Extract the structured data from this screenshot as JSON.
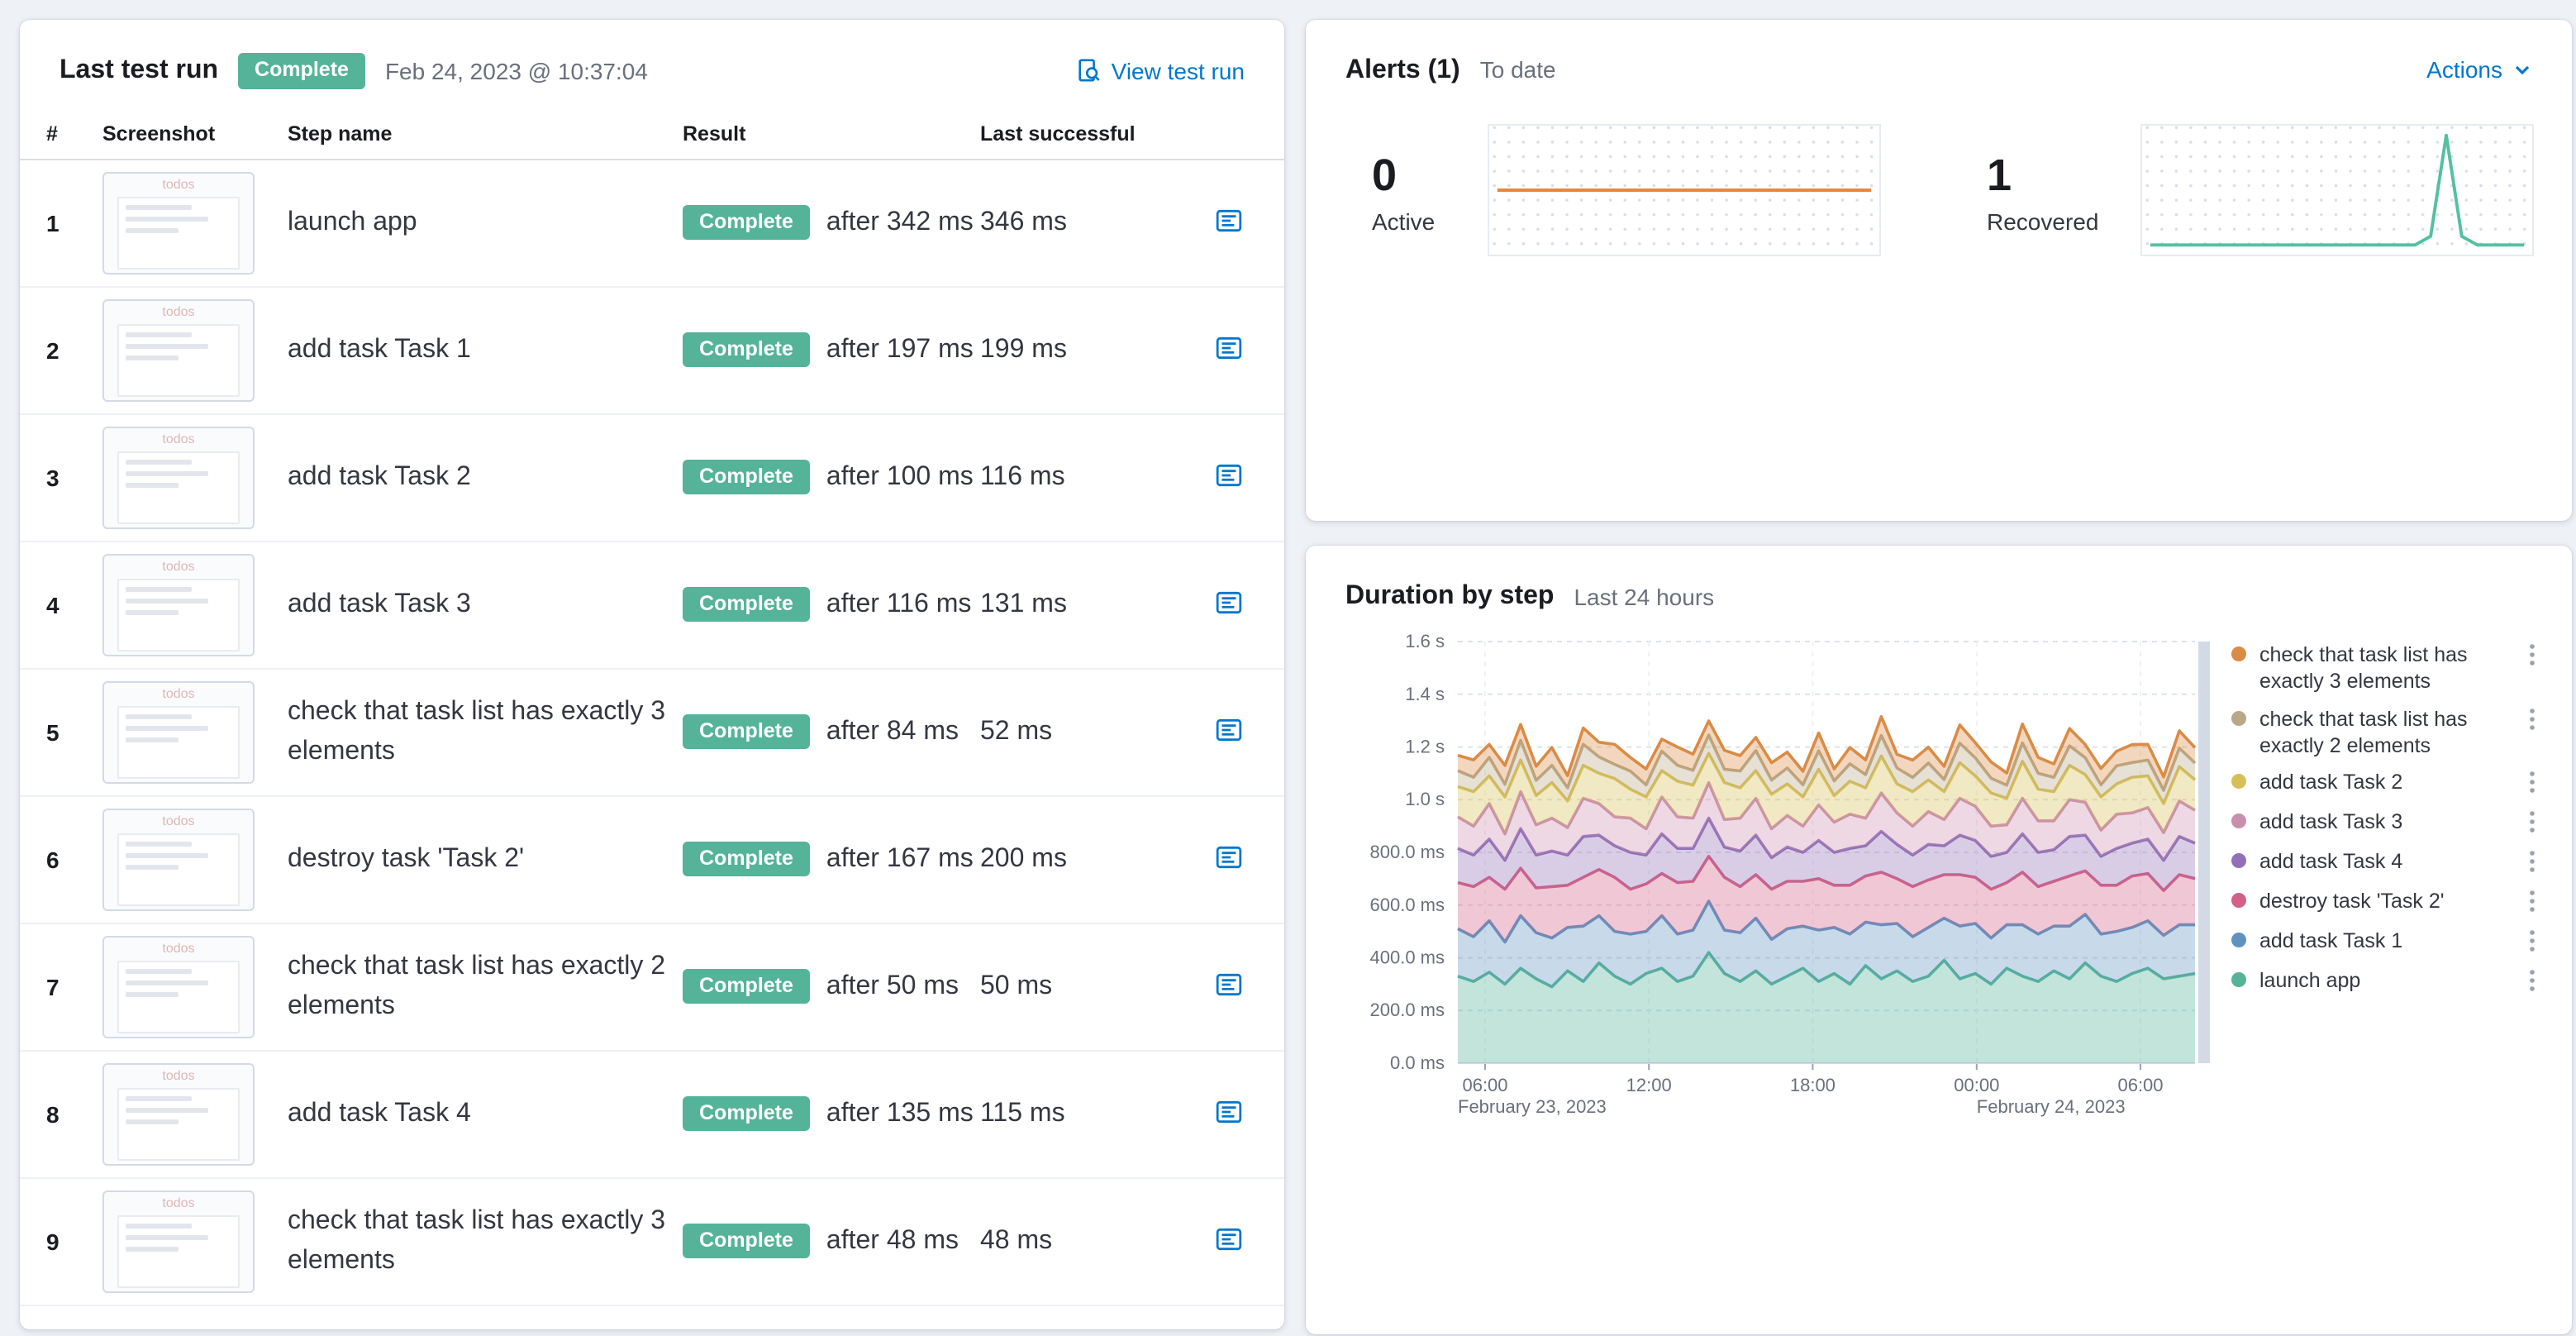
{
  "colors": {
    "page_background": "#eef1f6",
    "link_blue": "#0077cc",
    "badge_green": "#54b399"
  },
  "icons": {
    "view_test_run": "inspect-icon",
    "actions_dropdown": "chevron-down-icon",
    "step_action": "performance-breakdown-icon",
    "legend_menu": "ellipsis-menu-icon"
  },
  "last_test_run": {
    "title": "Last test run",
    "status_badge": "Complete",
    "timestamp": "Feb 24, 2023 @ 10:37:04",
    "view_link": "View test run",
    "columns": [
      "#",
      "Screenshot",
      "Step name",
      "Result",
      "Last successful"
    ],
    "thumbnail_text": "todos",
    "steps": [
      {
        "num": "1",
        "name": "launch app",
        "status": "Complete",
        "after": "after 342 ms",
        "last": "346 ms"
      },
      {
        "num": "2",
        "name": "add task Task 1",
        "status": "Complete",
        "after": "after 197 ms",
        "last": "199 ms"
      },
      {
        "num": "3",
        "name": "add task Task 2",
        "status": "Complete",
        "after": "after 100 ms",
        "last": "116 ms"
      },
      {
        "num": "4",
        "name": "add task Task 3",
        "status": "Complete",
        "after": "after 116 ms",
        "last": "131 ms"
      },
      {
        "num": "5",
        "name": "check that task list has exactly 3 elements",
        "status": "Complete",
        "after": "after 84 ms",
        "last": "52 ms"
      },
      {
        "num": "6",
        "name": "destroy task 'Task 2'",
        "status": "Complete",
        "after": "after 167 ms",
        "last": "200 ms"
      },
      {
        "num": "7",
        "name": "check that task list has exactly 2 elements",
        "status": "Complete",
        "after": "after 50 ms",
        "last": "50 ms"
      },
      {
        "num": "8",
        "name": "add task Task 4",
        "status": "Complete",
        "after": "after 135 ms",
        "last": "115 ms"
      },
      {
        "num": "9",
        "name": "check that task list has exactly 3 elements",
        "status": "Complete",
        "after": "after 48 ms",
        "last": "48 ms"
      }
    ]
  },
  "alerts": {
    "title": "Alerts (1)",
    "subtitle": "To date",
    "actions_label": "Actions",
    "stats": [
      {
        "value": "0",
        "label": "Active"
      },
      {
        "value": "1",
        "label": "Recovered"
      }
    ]
  },
  "duration_panel": {
    "title": "Duration by step",
    "subtitle": "Last 24 hours"
  },
  "chart_data": [
    {
      "type": "area",
      "stacked": true,
      "title": "Duration by step",
      "subtitle": "Last 24 hours",
      "ylim_ms": [
        0,
        1600
      ],
      "y_tick_labels": [
        "0.0 ms",
        "200.0 ms",
        "400.0 ms",
        "600.0 ms",
        "800.0 ms",
        "1.0 s",
        "1.2 s",
        "1.4 s",
        "1.6 s"
      ],
      "x_total_hours": 27,
      "x_ticks": [
        {
          "label": "06:00",
          "hours": 1
        },
        {
          "label": "12:00",
          "hours": 7
        },
        {
          "label": "18:00",
          "hours": 13
        },
        {
          "label": "00:00",
          "hours": 19
        },
        {
          "label": "06:00",
          "hours": 25
        }
      ],
      "x_day_labels": [
        {
          "label": "February 23, 2023",
          "hours": 0
        },
        {
          "label": "February 24, 2023",
          "hours": 19
        }
      ],
      "legend_position": "right",
      "legend_top_to_bottom": [
        "check that task list has exactly 3 elements",
        "check that task list has exactly 2 elements",
        "add task Task 2",
        "add task Task 3",
        "add task Task 4",
        "destroy task 'Task 2'",
        "add task Task 1",
        "launch app"
      ],
      "series": [
        {
          "name": "launch app",
          "color": "#54B399",
          "values": [
            330,
            310,
            345,
            300,
            360,
            320,
            290,
            350,
            310,
            380,
            330,
            300,
            340,
            360,
            310,
            330,
            420,
            340,
            310,
            350,
            300,
            330,
            360,
            310,
            340,
            300,
            370,
            320,
            350,
            310,
            330,
            390,
            320,
            340,
            300,
            360,
            330,
            310,
            350,
            320,
            380,
            330,
            310,
            340,
            360,
            320,
            330,
            340
          ]
        },
        {
          "name": "add task Task 1",
          "color": "#6092C0",
          "values": [
            180,
            170,
            195,
            160,
            200,
            175,
            185,
            165,
            210,
            180,
            170,
            190,
            160,
            200,
            180,
            175,
            195,
            165,
            185,
            200,
            170,
            180,
            160,
            195,
            175,
            190,
            165,
            205,
            180,
            170,
            185,
            160,
            200,
            190,
            175,
            165,
            195,
            180,
            170,
            200,
            185,
            160,
            190,
            175,
            180,
            165,
            195,
            185
          ]
        },
        {
          "name": "destroy task 'Task 2'",
          "color": "#D36086",
          "values": [
            175,
            190,
            165,
            200,
            180,
            170,
            195,
            160,
            185,
            175,
            205,
            170,
            180,
            160,
            195,
            185,
            170,
            200,
            175,
            165,
            190,
            180,
            170,
            195,
            160,
            185,
            175,
            200,
            170,
            190,
            180,
            165,
            195,
            175,
            185,
            160,
            200,
            180,
            170,
            190,
            165,
            185,
            175,
            195,
            180,
            170,
            190,
            175
          ]
        },
        {
          "name": "add task Task 4",
          "color": "#9170B8",
          "values": [
            130,
            120,
            145,
            110,
            150,
            125,
            135,
            115,
            155,
            130,
            120,
            140,
            110,
            150,
            130,
            125,
            145,
            115,
            135,
            150,
            120,
            130,
            110,
            145,
            125,
            140,
            115,
            155,
            130,
            120,
            135,
            110,
            150,
            140,
            125,
            115,
            145,
            130,
            120,
            150,
            135,
            110,
            140,
            125,
            130,
            115,
            145,
            135
          ]
        },
        {
          "name": "add task Task 3",
          "color": "#CA8EAE",
          "values": [
            120,
            110,
            135,
            100,
            140,
            115,
            125,
            105,
            145,
            120,
            110,
            130,
            100,
            140,
            120,
            115,
            135,
            105,
            125,
            140,
            110,
            120,
            100,
            135,
            115,
            130,
            105,
            145,
            120,
            110,
            125,
            100,
            140,
            130,
            115,
            105,
            135,
            120,
            110,
            140,
            125,
            100,
            130,
            115,
            120,
            105,
            135,
            125
          ]
        },
        {
          "name": "add task Task 2",
          "color": "#D6BF57",
          "values": [
            115,
            130,
            105,
            140,
            120,
            110,
            135,
            100,
            125,
            115,
            145,
            110,
            120,
            100,
            135,
            125,
            110,
            140,
            115,
            105,
            130,
            120,
            110,
            135,
            100,
            125,
            115,
            140,
            110,
            130,
            120,
            105,
            135,
            115,
            125,
            100,
            140,
            120,
            110,
            130,
            105,
            125,
            115,
            135,
            120,
            110,
            130,
            115
          ]
        },
        {
          "name": "check that task list has exactly 2 elements",
          "color": "#B9A888",
          "values": [
            60,
            55,
            70,
            48,
            75,
            58,
            65,
            50,
            80,
            62,
            54,
            68,
            46,
            74,
            60,
            56,
            70,
            50,
            64,
            76,
            54,
            60,
            46,
            70,
            56,
            66,
            50,
            78,
            60,
            54,
            64,
            46,
            74,
            68,
            56,
            50,
            70,
            60,
            54,
            74,
            64,
            46,
            68,
            56,
            60,
            50,
            70,
            64
          ]
        },
        {
          "name": "check that task list has exactly 3 elements",
          "color": "#DA8B45",
          "values": [
            58,
            66,
            50,
            72,
            60,
            54,
            68,
            46,
            62,
            56,
            76,
            52,
            60,
            46,
            70,
            62,
            54,
            72,
            58,
            50,
            66,
            60,
            52,
            68,
            46,
            62,
            56,
            72,
            52,
            66,
            60,
            50,
            70,
            58,
            62,
            46,
            72,
            60,
            52,
            66,
            50,
            62,
            56,
            68,
            60,
            52,
            66,
            58
          ]
        }
      ]
    },
    {
      "type": "line",
      "name": "Active alerts sparkline",
      "color": "#e8873c",
      "style": "midline",
      "values": [
        0,
        0,
        0,
        0,
        0,
        0,
        0,
        0,
        0,
        0,
        0,
        0,
        0,
        0,
        0,
        0,
        0,
        0,
        0,
        0,
        0,
        0,
        0,
        0,
        0
      ]
    },
    {
      "type": "line",
      "name": "Recovered alerts sparkline",
      "color": "#54c0a1",
      "style": "baseline-spike",
      "values": [
        0,
        0,
        0,
        0,
        0,
        0,
        0,
        0,
        0,
        0,
        0,
        0,
        0,
        0,
        0,
        0,
        0,
        0,
        0.08,
        1,
        0.08,
        0,
        0,
        0,
        0
      ]
    }
  ]
}
